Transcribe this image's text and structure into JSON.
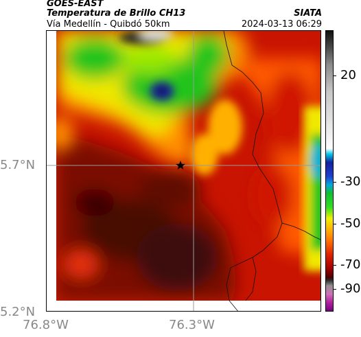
{
  "header": {
    "satellite": "GOES-EAST",
    "product": "Temperatura de Brillo CH13",
    "area": "Vía Medellín - Quibdó 50km",
    "organization": "SIATA",
    "timestamp": "2024-03-13 06:29"
  },
  "map": {
    "lat_labels": [
      "5.7°N",
      "5.2°N"
    ],
    "lon_labels": [
      "76.8°W",
      "76.3°W"
    ],
    "marker_icon": "star-icon"
  },
  "colorbar": {
    "labels": [
      "20",
      "-30",
      "-50",
      "-70",
      "-90"
    ],
    "units_hidden": true
  },
  "colors": {
    "very_cold": "#2b2b2b",
    "blue": "#1f2a8a",
    "green": "#22c41f",
    "yellow": "#f4f000",
    "orange": "#ff8a00",
    "red": "#d91500",
    "dark_red": "#5a0a05"
  }
}
